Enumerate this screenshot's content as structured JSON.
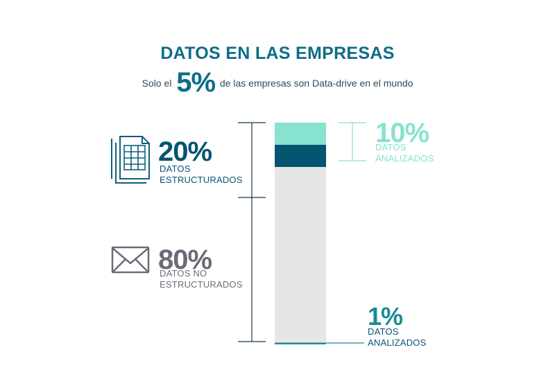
{
  "header": {
    "title": "DATOS EN LAS EMPRESAS",
    "subtitle_pre": "Solo el",
    "subtitle_highlight": "5%",
    "subtitle_post": "de las empresas son Data-drive en el mundo"
  },
  "left_labels": {
    "structured": {
      "pct": "20%",
      "label": "DATOS\nESTRUCTURADOS",
      "icon": "spreadsheet-document-icon"
    },
    "unstructured": {
      "pct": "80%",
      "label": "DATOS NO\nESTRUCTURADOS",
      "icon": "envelope-icon"
    }
  },
  "right_labels": {
    "analyzed_structured": {
      "pct": "10%",
      "label": "DATOS\nANALIZADOS"
    },
    "analyzed_unstructured": {
      "pct": "1%",
      "label": "DATOS\nANALIZADOS"
    }
  },
  "chart_data": {
    "type": "bar",
    "stacked": true,
    "values_bottom_to_top": [
      {
        "name": "unstructured_analyzed",
        "value": 0.8,
        "color": "#1b8a94"
      },
      {
        "name": "unstructured_not_analyzed",
        "value": 79.2,
        "color": "#e6e6e6"
      },
      {
        "name": "structured_not_analyzed",
        "value": 10,
        "color": "#045472"
      },
      {
        "name": "structured_analyzed",
        "value": 10,
        "color": "#87e2d0"
      }
    ],
    "total": 100
  },
  "colors": {
    "title": "#0e6d86",
    "dark_teal": "#045472",
    "mint": "#87e2d0",
    "gray_text": "#6b6b78",
    "bracket": "#163a4e"
  }
}
